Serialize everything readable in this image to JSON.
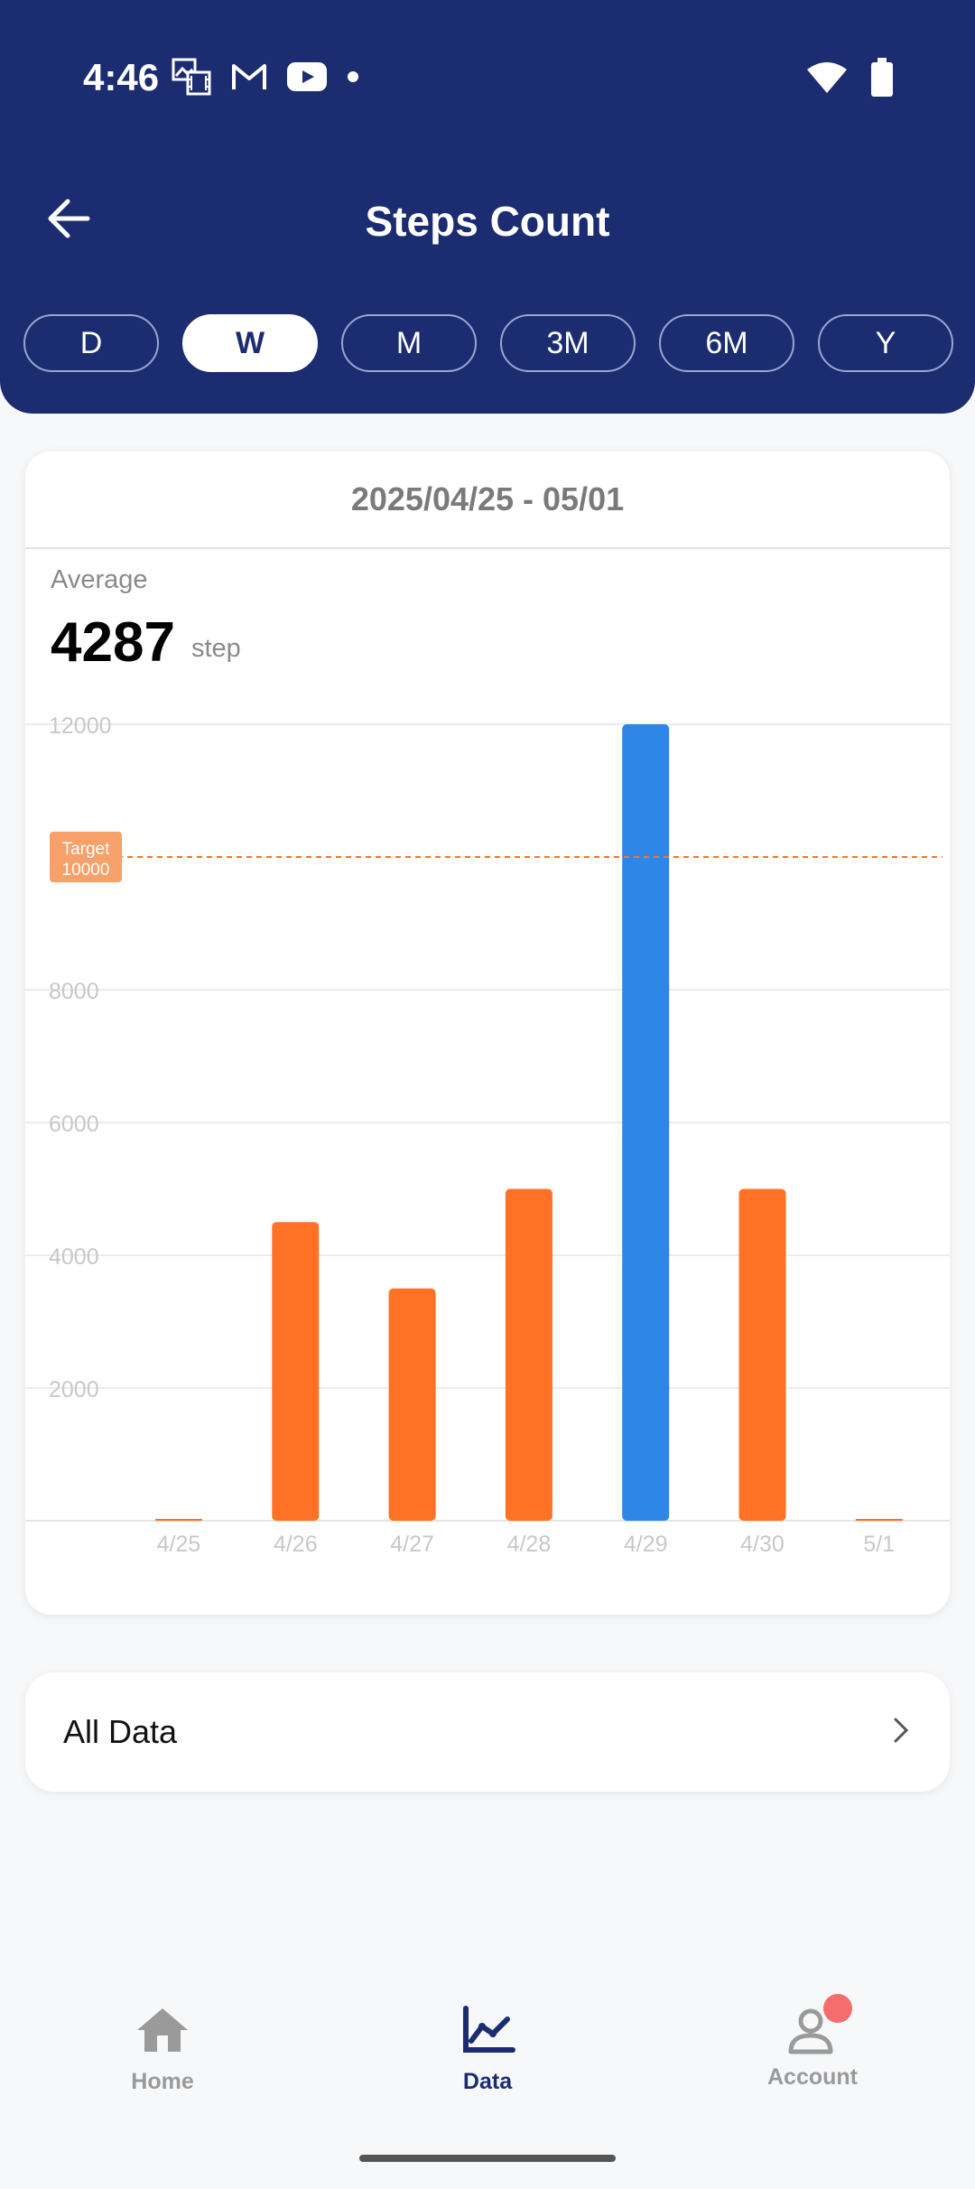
{
  "status_bar": {
    "time": "4:46",
    "left_icons": [
      "gallery-icon",
      "gmail-icon",
      "youtube-icon",
      "dot-icon"
    ],
    "right_icons": [
      "wifi-icon",
      "battery-icon"
    ]
  },
  "header": {
    "title": "Steps Count",
    "back_icon": "arrow-left-icon",
    "tabs": [
      {
        "label": "D",
        "active": false
      },
      {
        "label": "W",
        "active": true
      },
      {
        "label": "M",
        "active": false
      },
      {
        "label": "3M",
        "active": false
      },
      {
        "label": "6M",
        "active": false
      },
      {
        "label": "Y",
        "active": false
      }
    ]
  },
  "summary": {
    "date_range": "2025/04/25 - 05/01",
    "average_label": "Average",
    "average_value": "4287",
    "unit": "step"
  },
  "chart_data": {
    "type": "bar",
    "categories": [
      "4/25",
      "4/26",
      "4/27",
      "4/28",
      "4/29",
      "4/30",
      "5/1"
    ],
    "values": [
      0,
      4500,
      3500,
      5000,
      12000,
      5000,
      0
    ],
    "highlight_index": 4,
    "ylim": [
      0,
      12000
    ],
    "yticks": [
      "12000",
      "8000",
      "6000",
      "4000",
      "2000"
    ],
    "target": {
      "label": "Target",
      "value": 10000,
      "value_label": "10000"
    },
    "colors": {
      "bar": "#ff7226",
      "highlight": "#2e86e6",
      "target": "#ff7226",
      "target_badge": "#f7a06a",
      "grid": "#ececec",
      "axis_text": "#c8c8c8"
    }
  },
  "all_data": {
    "label": "All Data",
    "icon": "chevron-right-icon"
  },
  "bottom_nav": {
    "items": [
      {
        "label": "Home",
        "icon": "home-icon",
        "active": false
      },
      {
        "label": "Data",
        "icon": "chart-icon",
        "active": true
      },
      {
        "label": "Account",
        "icon": "account-icon",
        "active": false,
        "badge": true
      }
    ]
  },
  "colors": {
    "header": "#1b2c71",
    "background": "#f7f8fa",
    "badge": "#f66d6d"
  }
}
